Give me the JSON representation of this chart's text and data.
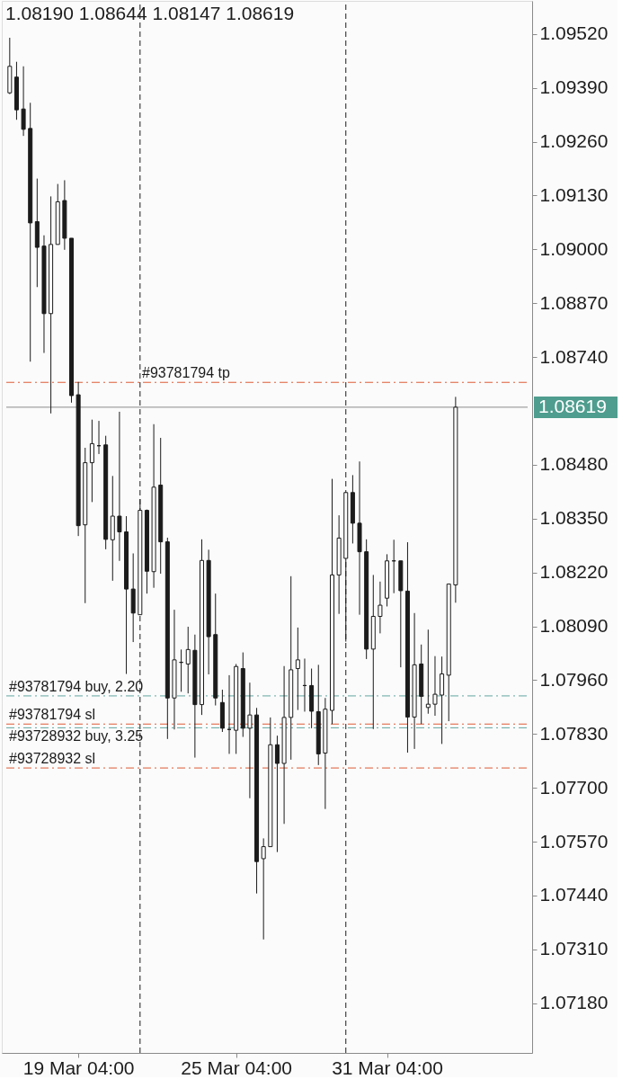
{
  "chart_data": {
    "type": "candlestick",
    "title": "1.08190 1.08644 1.08147 1.08619",
    "categories": [
      null,
      null,
      null,
      null,
      null,
      null,
      null,
      null,
      null,
      null,
      "19 Mar 04:00",
      null,
      null,
      null,
      null,
      null,
      null,
      null,
      null,
      null,
      null,
      null,
      null,
      null,
      null,
      null,
      null,
      null,
      null,
      null,
      null,
      null,
      null,
      "25 Mar 04:00",
      null,
      null,
      null,
      null,
      null,
      null,
      null,
      null,
      null,
      null,
      null,
      null,
      null,
      null,
      null,
      null,
      null,
      null,
      null,
      null,
      null,
      "31 Mar 04:00",
      null,
      null,
      null,
      null,
      null,
      null,
      null,
      null,
      null,
      null,
      null,
      null,
      null,
      null,
      null,
      null,
      null,
      null,
      null,
      null
    ],
    "ohlc": [
      [
        1.09378,
        1.09511,
        1.09375,
        1.09442
      ],
      [
        1.09416,
        1.09453,
        1.09313,
        1.09337
      ],
      [
        1.09339,
        1.09442,
        1.09274,
        1.0929
      ],
      [
        1.09292,
        1.09354,
        1.08729,
        1.09064
      ],
      [
        1.09067,
        1.09171,
        1.08909,
        1.09005
      ],
      [
        1.09008,
        1.09034,
        1.0875,
        1.08845
      ],
      [
        1.08845,
        1.09128,
        1.08604,
        1.09012
      ],
      [
        1.09012,
        1.09158,
        1.09012,
        1.09115
      ],
      [
        1.09118,
        1.09167,
        1.08999,
        1.09027
      ],
      [
        1.09027,
        1.09027,
        1.0863,
        1.08647
      ],
      [
        1.08649,
        1.0868,
        1.08308,
        1.08333
      ],
      [
        1.08335,
        1.08521,
        1.08146,
        1.08485
      ],
      [
        1.08485,
        1.08589,
        1.0839,
        1.08531
      ],
      [
        1.08526,
        1.08586,
        1.08506,
        1.08526
      ],
      [
        1.08528,
        1.0855,
        1.08276,
        1.083
      ],
      [
        1.08299,
        1.08453,
        1.082,
        1.08356
      ],
      [
        1.08356,
        1.08608,
        1.08248,
        1.08318
      ],
      [
        1.08318,
        1.08356,
        1.07975,
        1.0818
      ],
      [
        1.0818,
        1.08266,
        1.08052,
        1.08122
      ],
      [
        1.08118,
        1.08397,
        1.08118,
        1.0837
      ],
      [
        1.0837,
        1.08372,
        1.08169,
        1.08223
      ],
      [
        1.08222,
        1.08578,
        1.08183,
        1.08426
      ],
      [
        1.08431,
        1.08545,
        1.08217,
        1.08294
      ],
      [
        1.08294,
        1.08304,
        1.07818,
        1.07917
      ],
      [
        1.07917,
        1.0813,
        1.07841,
        1.08009
      ],
      [
        1.08003,
        1.08034,
        1.07932,
        1.08003
      ],
      [
        1.07999,
        1.08089,
        1.07928,
        1.08034
      ],
      [
        1.08032,
        1.0807,
        1.07773,
        1.07901
      ],
      [
        1.07901,
        1.083,
        1.07876,
        1.08249
      ],
      [
        1.08249,
        1.08275,
        1.07974,
        1.08065
      ],
      [
        1.0807,
        1.08169,
        1.07899,
        1.07917
      ],
      [
        1.07906,
        1.07937,
        1.07835,
        1.07844
      ],
      [
        1.07841,
        1.07972,
        1.07782,
        1.07841
      ],
      [
        1.07839,
        1.07999,
        1.07782,
        1.07993
      ],
      [
        1.07988,
        1.08027,
        1.07823,
        1.07844
      ],
      [
        1.07844,
        1.07954,
        1.07675,
        1.07876
      ],
      [
        1.07876,
        1.07893,
        1.07445,
        1.07522
      ],
      [
        1.07529,
        1.07578,
        1.07334,
        1.07558
      ],
      [
        1.07558,
        1.0787,
        1.07558,
        1.07804
      ],
      [
        1.07804,
        1.07826,
        1.07545,
        1.07759
      ],
      [
        1.07759,
        1.07994,
        1.07613,
        1.0787
      ],
      [
        1.0787,
        1.08211,
        1.07768,
        1.07985
      ],
      [
        1.07988,
        1.08087,
        1.07888,
        1.08009
      ],
      [
        1.07947,
        1.08012,
        1.07884,
        1.07947
      ],
      [
        1.07947,
        1.07988,
        1.07844,
        1.07885
      ],
      [
        1.07884,
        1.07997,
        1.07755,
        1.07782
      ],
      [
        1.07784,
        1.07917,
        1.07649,
        1.0789
      ],
      [
        1.07887,
        1.08446,
        1.07854,
        1.08214
      ],
      [
        1.08214,
        1.08358,
        1.0812,
        1.08303
      ],
      [
        1.08254,
        1.08414,
        1.08053,
        1.08413
      ],
      [
        1.08413,
        1.08455,
        1.0829,
        1.08339
      ],
      [
        1.08339,
        1.08488,
        1.08118,
        1.0827
      ],
      [
        1.0827,
        1.083,
        1.08011,
        1.08035
      ],
      [
        1.08035,
        1.08214,
        1.07842,
        1.08114
      ],
      [
        1.08114,
        1.08198,
        1.08073,
        1.08141
      ],
      [
        1.08158,
        1.08264,
        1.08138,
        1.08248
      ],
      [
        1.08248,
        1.08299,
        1.0817,
        1.08248
      ],
      [
        1.08248,
        1.08248,
        1.07991,
        1.08176
      ],
      [
        1.08175,
        1.08293,
        1.07785,
        1.07871
      ],
      [
        1.07871,
        1.08122,
        1.07794,
        1.07997
      ],
      [
        1.07999,
        1.08046,
        1.07854,
        1.07921
      ],
      [
        1.07894,
        1.08082,
        1.07879,
        1.07902
      ],
      [
        1.07902,
        1.08018,
        1.07874,
        1.07926
      ],
      [
        1.07924,
        1.08017,
        1.07806,
        1.07975
      ],
      [
        1.07972,
        1.08192,
        1.07861,
        1.08192
      ],
      [
        1.0819,
        1.08644,
        1.08147,
        1.08619
      ],
      null,
      null,
      null,
      null,
      null,
      null,
      null,
      null,
      null,
      null
    ],
    "colors": [
      "#ffffff",
      "#1b1b1b",
      "#1b1b1b",
      "#1b1b1b",
      "#1b1b1b",
      "#1b1b1b",
      "#ffffff",
      "#ffffff",
      "#1b1b1b",
      "#1b1b1b",
      "#1b1b1b",
      "#ffffff",
      "#ffffff",
      "#1b1b1b",
      "#1b1b1b",
      "#ffffff",
      "#1b1b1b",
      "#1b1b1b",
      "#1b1b1b",
      "#ffffff",
      "#1b1b1b",
      "#ffffff",
      "#1b1b1b",
      "#1b1b1b",
      "#ffffff",
      "#1b1b1b",
      "#ffffff",
      "#1b1b1b",
      "#ffffff",
      "#1b1b1b",
      "#1b1b1b",
      "#1b1b1b",
      "#1b1b1b",
      "#ffffff",
      "#1b1b1b",
      "#ffffff",
      "#1b1b1b",
      "#ffffff",
      "#ffffff",
      "#1b1b1b",
      "#ffffff",
      "#ffffff",
      "#ffffff",
      "#1b1b1b",
      "#1b1b1b",
      "#1b1b1b",
      "#ffffff",
      "#ffffff",
      "#ffffff",
      "#ffffff",
      "#1b1b1b",
      "#1b1b1b",
      "#1b1b1b",
      "#ffffff",
      "#ffffff",
      "#ffffff",
      "#1b1b1b",
      "#1b1b1b",
      "#1b1b1b",
      "#ffffff",
      "#1b1b1b",
      "#ffffff",
      "#ffffff",
      "#ffffff",
      "#ffffff",
      "#ffffff",
      null,
      null,
      null,
      null,
      null,
      null,
      null,
      null,
      null,
      null
    ],
    "ylim": [
      1.0706,
      1.096
    ],
    "yticks": [
      {
        "value": 1.0718,
        "label": "1.07180"
      },
      {
        "value": 1.0731,
        "label": "1.07310"
      },
      {
        "value": 1.0744,
        "label": "1.07440"
      },
      {
        "value": 1.0757,
        "label": "1.07570"
      },
      {
        "value": 1.077,
        "label": "1.07700"
      },
      {
        "value": 1.0783,
        "label": "1.07830"
      },
      {
        "value": 1.0796,
        "label": "1.07960"
      },
      {
        "value": 1.0809,
        "label": "1.08090"
      },
      {
        "value": 1.0822,
        "label": "1.08220"
      },
      {
        "value": 1.0835,
        "label": "1.08350"
      },
      {
        "value": 1.0848,
        "label": "1.08480"
      },
      {
        "value": 1.0874,
        "label": "1.08740"
      },
      {
        "value": 1.0887,
        "label": "1.08870"
      },
      {
        "value": 1.09,
        "label": "1.09000"
      },
      {
        "value": 1.0913,
        "label": "1.09130"
      },
      {
        "value": 1.0926,
        "label": "1.09260"
      },
      {
        "value": 1.0939,
        "label": "1.09390"
      },
      {
        "value": 1.0952,
        "label": "1.09520"
      }
    ],
    "ref_lines": [
      {
        "axis": "y",
        "value": 1.08679,
        "label": "#93781794 tp",
        "color": "#de5b36",
        "line_style": "dashdot"
      },
      {
        "axis": "y",
        "value": 1.08619,
        "label": "1.08619",
        "color": "#8c8c8c",
        "line_style": "solid"
      },
      {
        "axis": "y",
        "value": 1.07922,
        "label": "#93781794 buy, 2.20",
        "color": "#62a6a0",
        "line_style": "dashdot"
      },
      {
        "axis": "y",
        "value": 1.07854,
        "label": "#93781794 sl",
        "color": "#de5b36",
        "line_style": "dashdot"
      },
      {
        "axis": "y",
        "value": 1.07845,
        "label": "#93728932 buy, 3.25",
        "color": "#62a6a0",
        "line_style": "dashdot"
      },
      {
        "axis": "y",
        "value": 1.07748,
        "label": "#93728932 sl",
        "color": "#de5b36",
        "line_style": "dashdot"
      }
    ]
  }
}
